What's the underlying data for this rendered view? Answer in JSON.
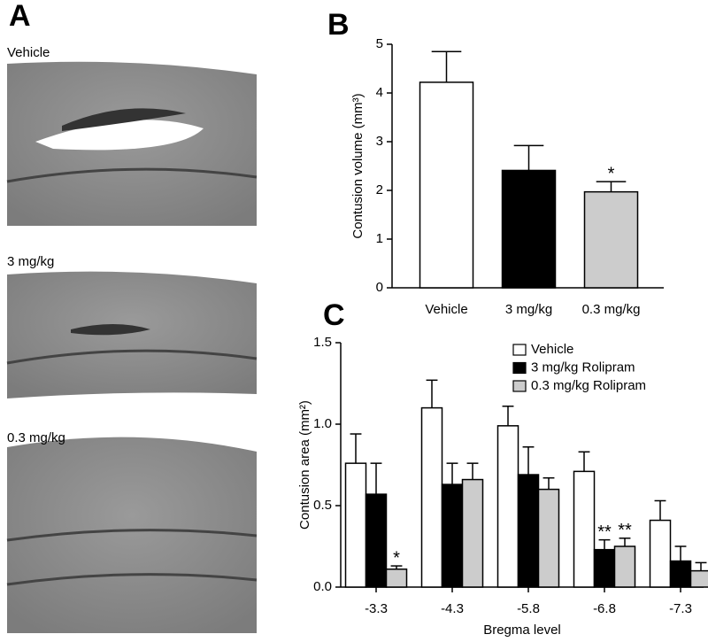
{
  "panel_a": {
    "letter": "A",
    "labels": [
      "Vehicle",
      "3 mg/kg",
      "0.3 mg/kg"
    ]
  },
  "chart_data": [
    {
      "type": "bar",
      "panel_label": "B",
      "y_label": "Contusion volume (mm³)",
      "categories": [
        "Vehicle",
        "3 mg/kg",
        "0.3 mg/kg"
      ],
      "values": [
        4.22,
        2.41,
        1.97
      ],
      "errors": [
        0.63,
        0.51,
        0.21
      ],
      "colors": [
        "#ffffff",
        "#000000",
        "#cccccc"
      ],
      "significance": [
        null,
        null,
        "*"
      ],
      "ylim": [
        0,
        5
      ],
      "yticks": [
        0,
        1,
        2,
        3,
        4,
        5
      ]
    },
    {
      "type": "grouped_bar",
      "panel_label": "C",
      "y_label": "Contusion area (mm²)",
      "x_label": "Bregma level",
      "categories": [
        "-3.3",
        "-4.3",
        "-5.8",
        "-6.8",
        "-7.3"
      ],
      "series": [
        {
          "name": "Vehicle",
          "color": "#ffffff",
          "values": [
            0.76,
            1.1,
            0.99,
            0.71,
            0.41
          ],
          "errors": [
            0.18,
            0.17,
            0.12,
            0.12,
            0.12
          ],
          "significance": [
            null,
            null,
            null,
            null,
            null
          ]
        },
        {
          "name": "3 mg/kg Rolipram",
          "color": "#000000",
          "values": [
            0.57,
            0.63,
            0.69,
            0.23,
            0.16
          ],
          "errors": [
            0.19,
            0.13,
            0.17,
            0.06,
            0.09
          ],
          "significance": [
            null,
            null,
            null,
            "**",
            null
          ]
        },
        {
          "name": "0.3 mg/kg Rolipram",
          "color": "#cccccc",
          "values": [
            0.11,
            0.66,
            0.6,
            0.25,
            0.1
          ],
          "errors": [
            0.02,
            0.1,
            0.07,
            0.05,
            0.05
          ],
          "significance": [
            "*",
            null,
            null,
            "**",
            null
          ]
        }
      ],
      "ylim": [
        0,
        1.5
      ],
      "yticks": [
        {
          "value": 0,
          "label": "0.0"
        },
        0.5,
        {
          "value": 1,
          "label": "1.0"
        },
        1.5
      ],
      "legend": "top-right"
    }
  ]
}
